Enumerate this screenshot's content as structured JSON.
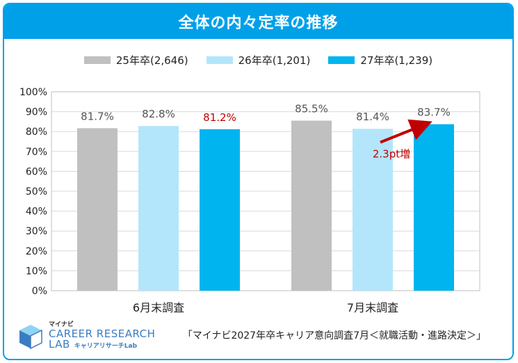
{
  "header": {
    "title": "全体の内々定率の推移"
  },
  "colors": {
    "accent": "#00a0e9",
    "series": [
      "#c0c0c0",
      "#b3e6fb",
      "#00b4ef"
    ],
    "annotation": "#c00000"
  },
  "chart_data": {
    "type": "bar",
    "categories": [
      "6月末調査",
      "7月末調査"
    ],
    "series": [
      {
        "name": "25年卒(2,646)",
        "values": [
          81.7,
          85.5
        ],
        "labels": [
          "81.7%",
          "85.5%"
        ]
      },
      {
        "name": "26年卒(1,201)",
        "values": [
          82.8,
          81.4
        ],
        "labels": [
          "82.8%",
          "81.4%"
        ]
      },
      {
        "name": "27年卒(1,239)",
        "values": [
          81.2,
          83.7
        ],
        "labels": [
          "81.2%",
          "83.7%"
        ]
      }
    ],
    "yticks": [
      "0%",
      "10%",
      "20%",
      "30%",
      "40%",
      "50%",
      "60%",
      "70%",
      "80%",
      "90%",
      "100%"
    ],
    "ylim": [
      0,
      100
    ],
    "grid": true,
    "legend": "top",
    "annotation": {
      "text": "2.3pt増",
      "series_index": 2,
      "category_index": 1
    }
  },
  "footer": {
    "note": "「マイナビ2027年卒キャリア意向調査7月＜就職活動・進路決定＞」",
    "logo_top": "マイナビ",
    "logo_main": "CAREER RESEARCH",
    "logo_lab": "LAB",
    "logo_sub": "キャリアリサーチLab"
  }
}
